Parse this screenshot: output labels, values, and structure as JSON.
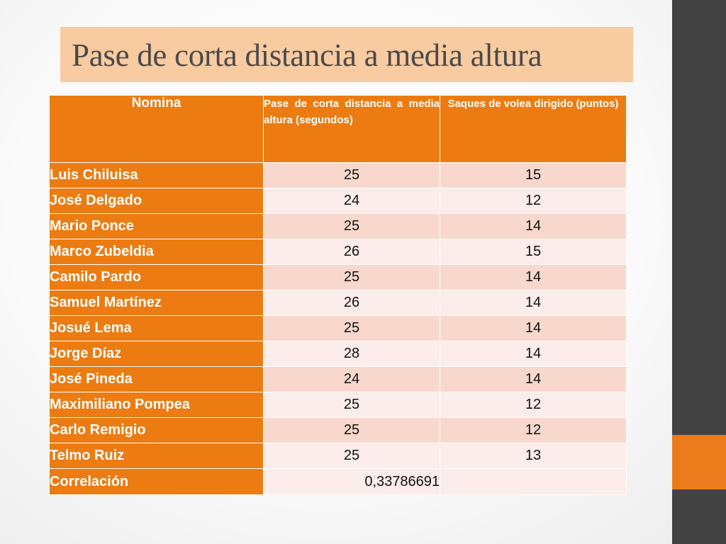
{
  "slide": {
    "title": "Pase de corta distancia a media altura",
    "colors": {
      "accent": "#ec7c12",
      "title_box": "#f8cba0",
      "side_bar": "#424242"
    }
  },
  "table": {
    "headers": [
      "Nomina",
      "Pase de corta distancia a media altura (segundos)",
      "Saques de volea dirigido (puntos)"
    ],
    "rows": [
      {
        "name": "Luis Chiluisa",
        "pase": "25",
        "saques": "15"
      },
      {
        "name": "José Delgado",
        "pase": "24",
        "saques": "12"
      },
      {
        "name": "Mario Ponce",
        "pase": "25",
        "saques": "14"
      },
      {
        "name": "Marco Zubeldia",
        "pase": "26",
        "saques": "15"
      },
      {
        "name": "Camilo Pardo",
        "pase": "25",
        "saques": "14"
      },
      {
        "name": "Samuel Martínez",
        "pase": "26",
        "saques": "14"
      },
      {
        "name": "Josué Lema",
        "pase": "25",
        "saques": "14"
      },
      {
        "name": "Jorge Díaz",
        "pase": "28",
        "saques": "14"
      },
      {
        "name": "José Pineda",
        "pase": "24",
        "saques": "14"
      },
      {
        "name": "Maximiliano Pompea",
        "pase": "25",
        "saques": "12"
      },
      {
        "name": "Carlo Remigio",
        "pase": "25",
        "saques": "12"
      },
      {
        "name": "Telmo Ruiz",
        "pase": "25",
        "saques": "13"
      }
    ],
    "correlation": {
      "label": "Correlación",
      "value": "0,33786691"
    }
  }
}
